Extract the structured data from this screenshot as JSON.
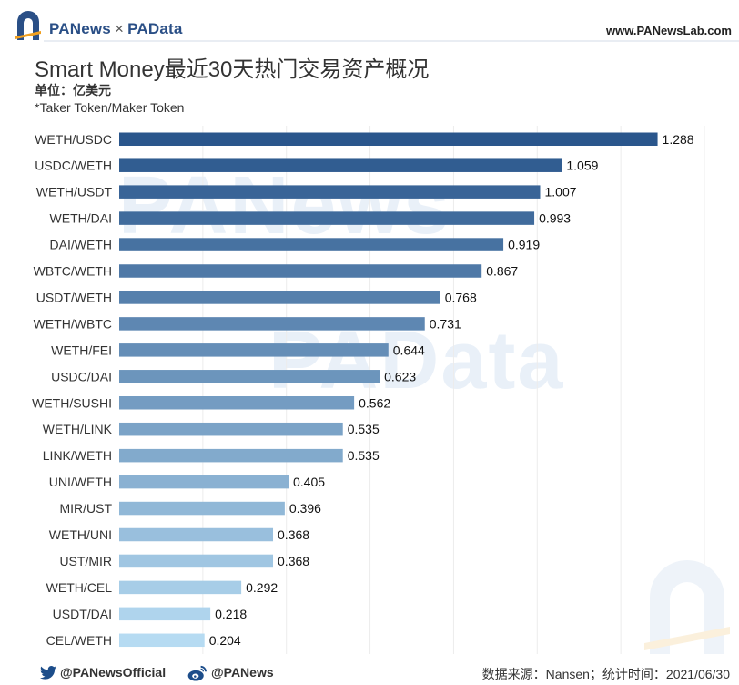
{
  "header": {
    "brand_left": "PANews",
    "brand_sep": "×",
    "brand_right": "PAData",
    "url": "www.PANewsLab.com"
  },
  "title": "Smart Money最近30天热门交易资产概况",
  "unit": "单位：亿美元",
  "note": "*Taker Token/Maker Token",
  "footer": {
    "twitter": "@PANewsOfficial",
    "weibo": "@PANews",
    "source": "数据来源：Nansen；统计时间：2021/06/30"
  },
  "watermarks": [
    "PANews",
    "PAData"
  ],
  "colors": {
    "dark": "#2a568c",
    "light": "#b6dbf2",
    "brand": "#2a4f86"
  },
  "icons": [
    "panews-logo-icon",
    "twitter-icon",
    "weibo-icon"
  ],
  "chart_data": {
    "type": "bar",
    "orientation": "horizontal",
    "categories": [
      "WETH/USDC",
      "USDC/WETH",
      "WETH/USDT",
      "WETH/DAI",
      "DAI/WETH",
      "WBTC/WETH",
      "USDT/WETH",
      "WETH/WBTC",
      "WETH/FEI",
      "USDC/DAI",
      "WETH/SUSHI",
      "WETH/LINK",
      "LINK/WETH",
      "UNI/WETH",
      "MIR/UST",
      "WETH/UNI",
      "UST/MIR",
      "WETH/CEL",
      "USDT/DAI",
      "CEL/WETH"
    ],
    "values": [
      1.288,
      1.059,
      1.007,
      0.993,
      0.919,
      0.867,
      0.768,
      0.731,
      0.644,
      0.623,
      0.562,
      0.535,
      0.535,
      0.405,
      0.396,
      0.368,
      0.368,
      0.292,
      0.218,
      0.204
    ],
    "labels": [
      "1.288",
      "1.059",
      "1.007",
      "0.993",
      "0.919",
      "0.867",
      "0.768",
      "0.731",
      "0.644",
      "0.623",
      "0.562",
      "0.535",
      "0.535",
      "0.405",
      "0.396",
      "0.368",
      "0.368",
      "0.292",
      "0.218",
      "0.204"
    ],
    "xlim": [
      0,
      1.4
    ],
    "grid": true
  }
}
